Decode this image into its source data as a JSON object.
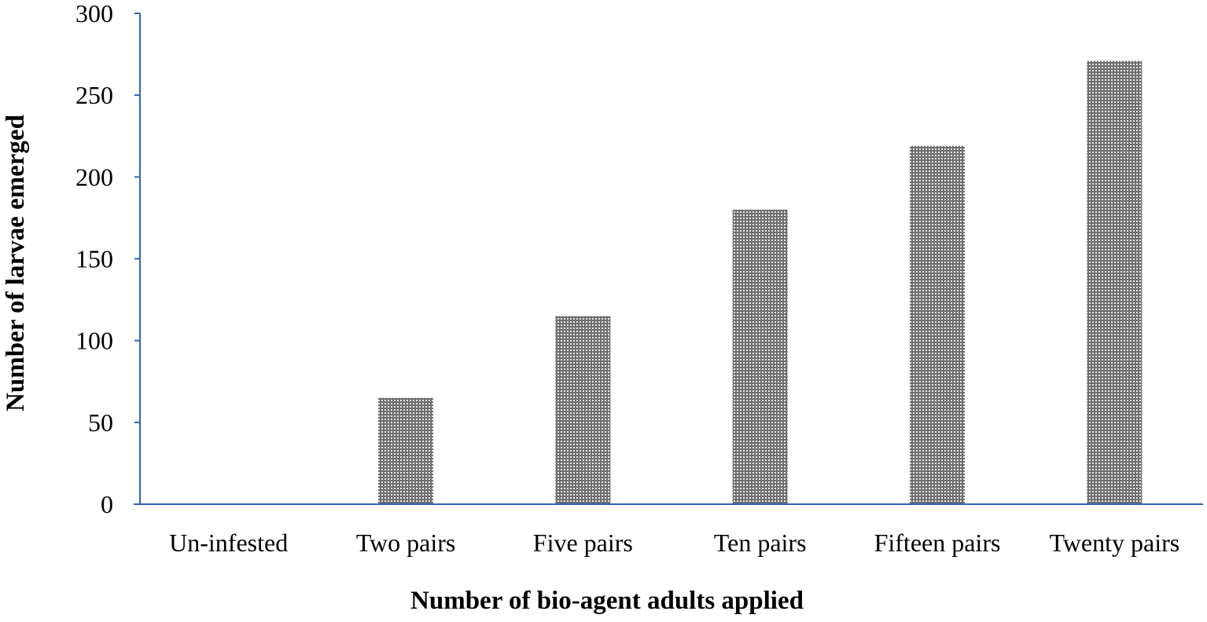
{
  "chart_data": {
    "type": "bar",
    "title": "",
    "xlabel": "Number of bio-agent adults applied",
    "ylabel": "Number of larvae emerged",
    "categories": [
      "Un-infested",
      "Two pairs",
      "Five pairs",
      "Ten pairs",
      "Fifteen pairs",
      "Twenty pairs"
    ],
    "values": [
      0,
      65,
      115,
      180,
      219,
      271
    ],
    "ylim": [
      0,
      300
    ],
    "yticks": [
      0,
      50,
      100,
      150,
      200,
      250,
      300
    ],
    "grid": false,
    "legend": "none",
    "colors": {
      "bar_fill": "#6e6e6e",
      "bar_dot": "#e8e8e8",
      "axis_line": "#2f64b5"
    }
  }
}
